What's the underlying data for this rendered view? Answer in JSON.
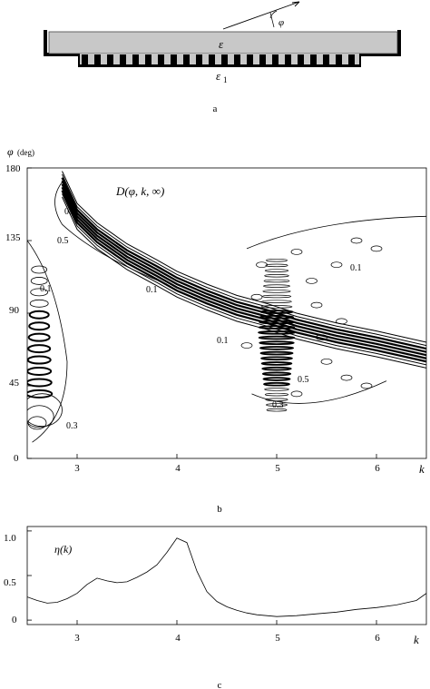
{
  "panel_a": {
    "caption": "a",
    "epsilon_label": "ε",
    "epsilon1_label": "ε",
    "epsilon1_sub": "1",
    "phi_label": "φ"
  },
  "panel_b": {
    "caption": "b",
    "y_axis_label": "φ",
    "y_axis_unit": "(deg)",
    "x_axis_label": "k",
    "title": "D(φ, k, ∞)",
    "y_ticks": [
      "180",
      "135",
      "90",
      "45",
      "0"
    ],
    "x_ticks": [
      "3",
      "4",
      "5",
      "6"
    ],
    "contour_labels": [
      {
        "text": "0.3"
      },
      {
        "text": "0.5"
      },
      {
        "text": "0.1"
      },
      {
        "text": "0.1"
      },
      {
        "text": "0.1"
      },
      {
        "text": "0.1"
      },
      {
        "text": "0.3"
      },
      {
        "text": "0.5"
      },
      {
        "text": "0.3"
      }
    ]
  },
  "panel_c": {
    "caption": "c",
    "y_axis_label": "η(k)",
    "x_axis_label": "k"
  },
  "chart_data": [
    {
      "type": "heatmap",
      "title": "D(φ,k,∞)",
      "xlabel": "k",
      "ylabel": "φ (deg)",
      "xlim": [
        2.5,
        6.5
      ],
      "ylim": [
        0,
        180
      ],
      "x_ticks": [
        3,
        4,
        5,
        6
      ],
      "y_ticks": [
        0,
        45,
        90,
        135,
        180
      ],
      "ridge": {
        "k": [
          2.85,
          3.0,
          3.2,
          3.5,
          3.8,
          4.0,
          4.3,
          4.6,
          4.9,
          5.2,
          5.6,
          6.0,
          6.5
        ],
        "phi": [
          170,
          150,
          138,
          125,
          115,
          108,
          100,
          93,
          88,
          82,
          76,
          71,
          64
        ]
      },
      "contour_levels": [
        0.1,
        0.3,
        0.5
      ]
    },
    {
      "type": "line",
      "xlabel": "k",
      "ylabel": "η(k)",
      "xlim": [
        2.5,
        6.5
      ],
      "ylim": [
        -0.05,
        1.05
      ],
      "x_ticks": [
        3,
        4,
        5,
        6
      ],
      "y_ticks": [
        0,
        0.5,
        1.0
      ],
      "x": [
        2.5,
        2.6,
        2.7,
        2.8,
        2.9,
        3.0,
        3.1,
        3.2,
        3.3,
        3.4,
        3.5,
        3.6,
        3.7,
        3.8,
        3.9,
        4.0,
        4.1,
        4.2,
        4.3,
        4.4,
        4.5,
        4.6,
        4.7,
        4.8,
        4.9,
        5.0,
        5.2,
        5.4,
        5.6,
        5.8,
        6.0,
        6.2,
        6.4,
        6.5
      ],
      "y": [
        0.26,
        0.22,
        0.19,
        0.2,
        0.24,
        0.3,
        0.4,
        0.47,
        0.44,
        0.42,
        0.43,
        0.48,
        0.54,
        0.62,
        0.76,
        0.92,
        0.87,
        0.55,
        0.32,
        0.21,
        0.15,
        0.11,
        0.08,
        0.06,
        0.05,
        0.04,
        0.05,
        0.07,
        0.09,
        0.12,
        0.14,
        0.17,
        0.22,
        0.3
      ]
    }
  ]
}
